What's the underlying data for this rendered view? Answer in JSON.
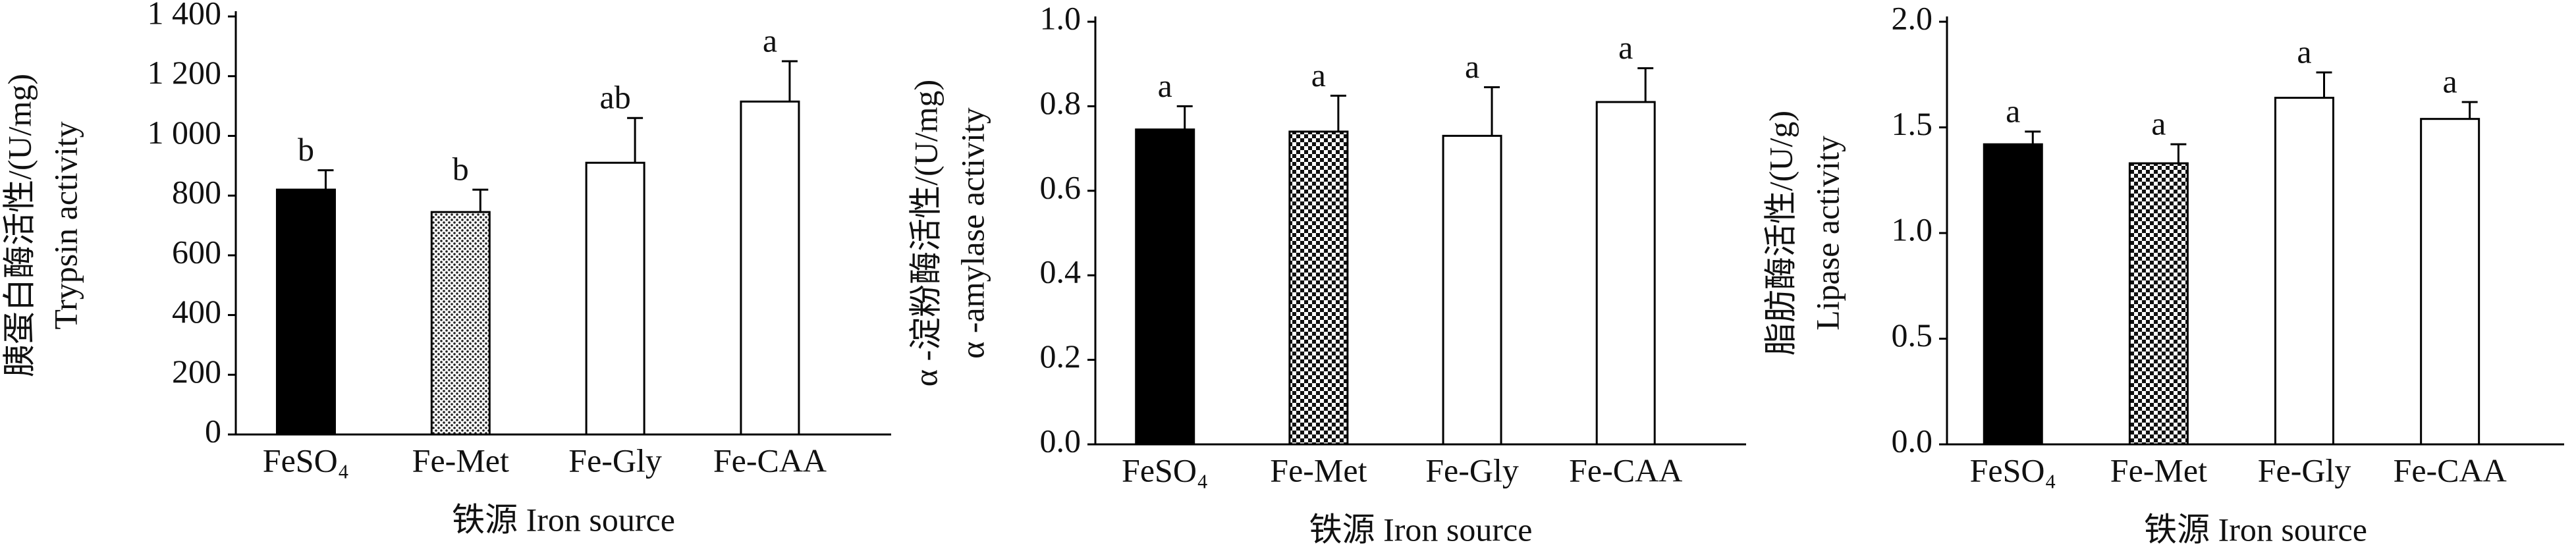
{
  "chart_data": [
    {
      "type": "bar",
      "y_label": [
        "胰蛋白酶活性/(U/mg)",
        "Trypsin activity"
      ],
      "x_label": "铁源 Iron source",
      "categories": [
        "FeSO₄",
        "Fe-Met",
        "Fe-Gly",
        "Fe-CAA"
      ],
      "values": [
        820,
        745,
        910,
        1115
      ],
      "errors": [
        65,
        75,
        150,
        135
      ],
      "annotations": [
        "b",
        "b",
        "ab",
        "a"
      ],
      "bar_styles": [
        "solid",
        "dotted",
        "white",
        "white"
      ],
      "ylim": [
        0,
        1400
      ],
      "yticks": [
        0,
        200,
        400,
        600,
        800,
        {
          "value": 1000,
          "label": "1 000"
        },
        {
          "value": 1200,
          "label": "1 200"
        },
        {
          "value": 1400,
          "label": "1 400"
        }
      ]
    },
    {
      "type": "bar",
      "y_label": [
        "α -淀粉酶活性/(U/mg)",
        "α -amylase activity"
      ],
      "x_label": "铁源 Iron source",
      "categories": [
        "FeSO₄",
        "Fe-Met",
        "Fe-Gly",
        "Fe-CAA"
      ],
      "values": [
        0.745,
        0.74,
        0.73,
        0.81
      ],
      "errors": [
        0.055,
        0.085,
        0.115,
        0.08
      ],
      "annotations": [
        "a",
        "a",
        "a",
        "a"
      ],
      "bar_styles": [
        "solid",
        "checker",
        "white",
        "white"
      ],
      "ylim": [
        0,
        1
      ],
      "yticks": [
        {
          "value": 0,
          "label": "0.0"
        },
        0.2,
        0.4,
        0.6,
        0.8,
        {
          "value": 1,
          "label": "1.0"
        }
      ]
    },
    {
      "type": "bar",
      "y_label": [
        "脂肪酶活性/(U/g)",
        "Lipase activity"
      ],
      "x_label": "铁源 Iron source",
      "categories": [
        "FeSO₄",
        "Fe-Met",
        "Fe-Gly",
        "Fe-CAA"
      ],
      "values": [
        1.42,
        1.33,
        1.64,
        1.54
      ],
      "errors": [
        0.06,
        0.09,
        0.12,
        0.08
      ],
      "annotations": [
        "a",
        "a",
        "a",
        "a"
      ],
      "bar_styles": [
        "solid",
        "checker",
        "white",
        "white"
      ],
      "ylim": [
        0,
        2
      ],
      "yticks": [
        {
          "value": 0,
          "label": "0.0"
        },
        0.5,
        {
          "value": 1,
          "label": "1.0"
        },
        1.5,
        {
          "value": 2,
          "label": "2.0"
        }
      ]
    }
  ]
}
